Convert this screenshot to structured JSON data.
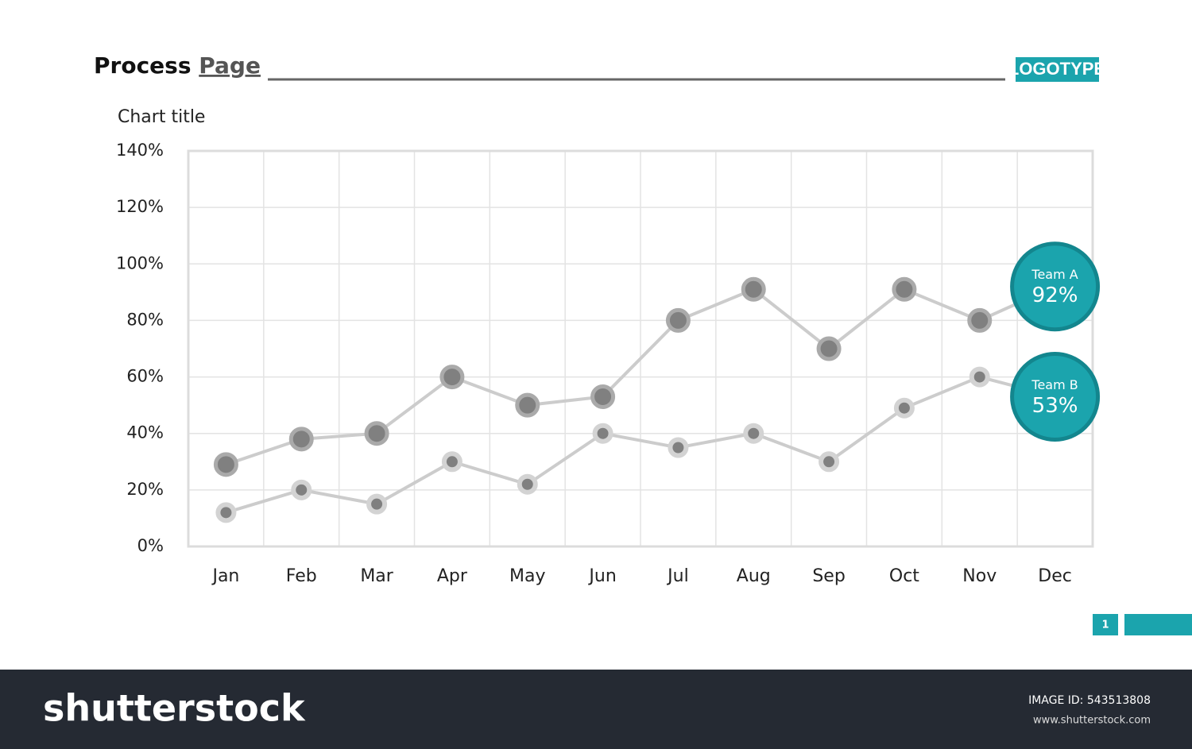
{
  "header": {
    "title_bold": "Process",
    "title_rest": "Page",
    "logo": "LOGOTYPE"
  },
  "chart_data": {
    "type": "line",
    "title": "Chart title",
    "categories": [
      "Jan",
      "Feb",
      "Mar",
      "Apr",
      "May",
      "Jun",
      "Jul",
      "Aug",
      "Sep",
      "Oct",
      "Nov",
      "Dec"
    ],
    "series": [
      {
        "name": "Team A",
        "color": "#808080",
        "values": [
          29,
          38,
          40,
          60,
          50,
          53,
          80,
          91,
          70,
          91,
          80,
          92
        ],
        "value_labels": [
          null,
          null,
          null,
          null,
          null,
          null,
          null,
          null,
          null,
          null,
          null,
          "92%"
        ]
      },
      {
        "name": "Team B",
        "color": "#808080",
        "values": [
          12,
          20,
          15,
          30,
          22,
          40,
          35,
          40,
          30,
          49,
          60,
          53
        ],
        "value_labels": [
          null,
          null,
          null,
          null,
          null,
          null,
          null,
          null,
          null,
          null,
          null,
          "53%"
        ]
      }
    ],
    "line_color": "#cccccc",
    "accent_color": "#1ba4ad",
    "ylim": [
      0,
      140
    ],
    "yticks": [
      {
        "value": 0,
        "label": "0%"
      },
      {
        "value": 20,
        "label": "20%"
      },
      {
        "value": 40,
        "label": "40%"
      },
      {
        "value": 60,
        "label": "60%"
      },
      {
        "value": 80,
        "label": "80%"
      },
      {
        "value": 100,
        "label": "100%"
      },
      {
        "value": 120,
        "label": "120%"
      },
      {
        "value": 140,
        "label": "140%"
      }
    ],
    "grid": true
  },
  "page_number": "1",
  "footer": {
    "brand": "shutterstock",
    "image_id": "IMAGE ID: 543513808",
    "url": "www.shutterstock.com"
  }
}
